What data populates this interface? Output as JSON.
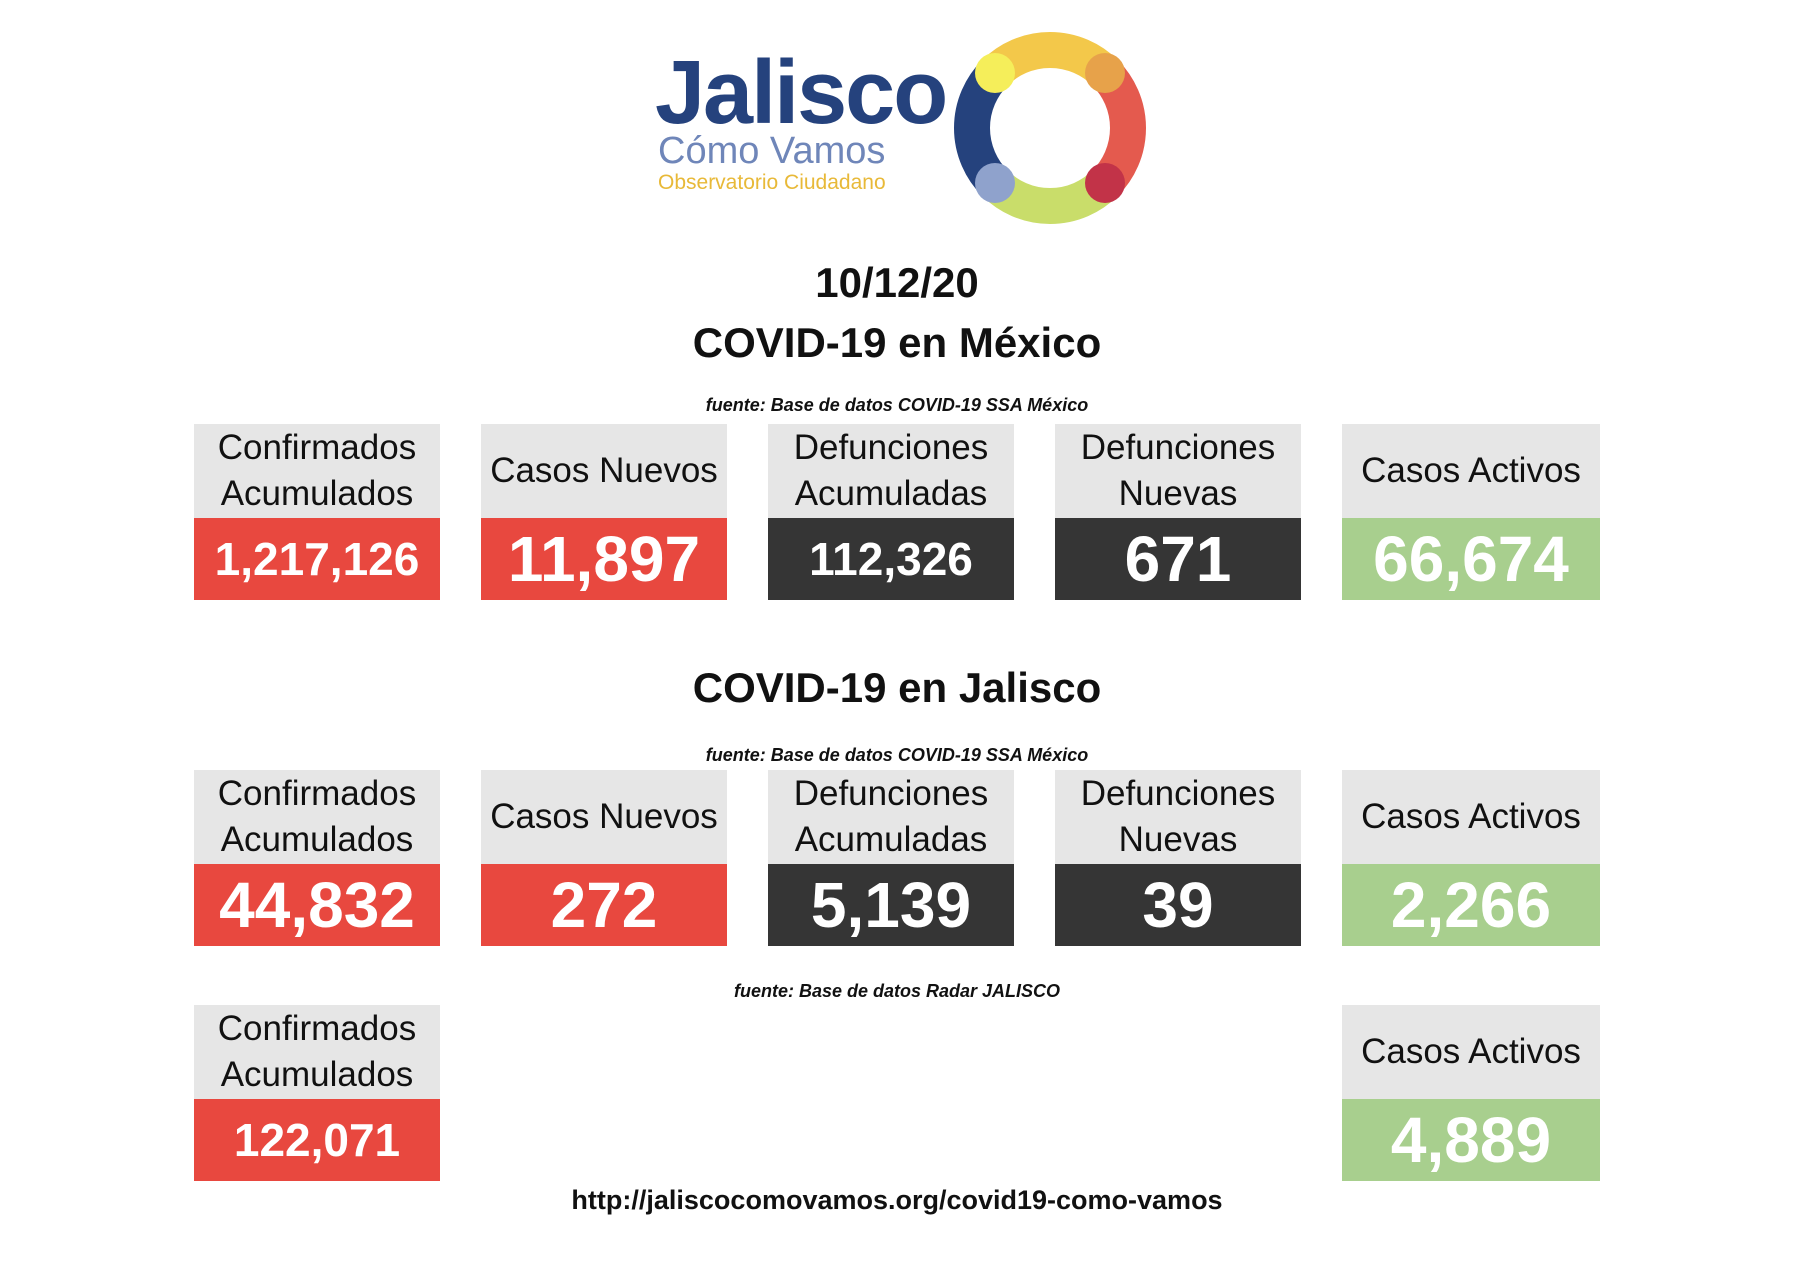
{
  "logo": {
    "name": "Jalisco",
    "subtitle": "Cómo Vamos",
    "tagline": "Observatorio Ciudadano",
    "ring_colors": [
      "#f3c84a",
      "#e45a4e",
      "#c9dd6a",
      "#25427d",
      "#e7a24a",
      "#c23348",
      "#f5ee5a",
      "#8fa2cc"
    ]
  },
  "date": "10/12/20",
  "mexico": {
    "title": "COVID-19 en México",
    "source": "fuente: Base de datos COVID-19 SSA México",
    "cards": [
      {
        "label": "Confirmados Acumulados",
        "value": "1,217,126"
      },
      {
        "label": "Casos Nuevos",
        "value": "11,897"
      },
      {
        "label": "Defunciones Acumuladas",
        "value": "112,326"
      },
      {
        "label": "Defunciones Nuevas",
        "value": "671"
      },
      {
        "label": "Casos Activos",
        "value": "66,674"
      }
    ]
  },
  "jalisco": {
    "title": "COVID-19 en Jalisco",
    "source": "fuente: Base de datos COVID-19 SSA México",
    "cards": [
      {
        "label": "Confirmados Acumulados",
        "value": "44,832"
      },
      {
        "label": "Casos Nuevos",
        "value": "272"
      },
      {
        "label": "Defunciones Acumuladas",
        "value": "5,139"
      },
      {
        "label": "Defunciones Nuevas",
        "value": "39"
      },
      {
        "label": "Casos Activos",
        "value": "2,266"
      }
    ]
  },
  "radar": {
    "source": "fuente: Base de datos Radar JALISCO",
    "cards": [
      {
        "label": "Confirmados Acumulados",
        "value": "122,071"
      },
      {
        "label": "Casos Activos",
        "value": "4,889"
      }
    ]
  },
  "url": "http://jaliscocomovamos.org/covid19-como-vamos",
  "colors": {
    "red": "#e8483f",
    "dark": "#353535",
    "green": "#a8cf8e",
    "header_gray": "#e6e6e6"
  }
}
